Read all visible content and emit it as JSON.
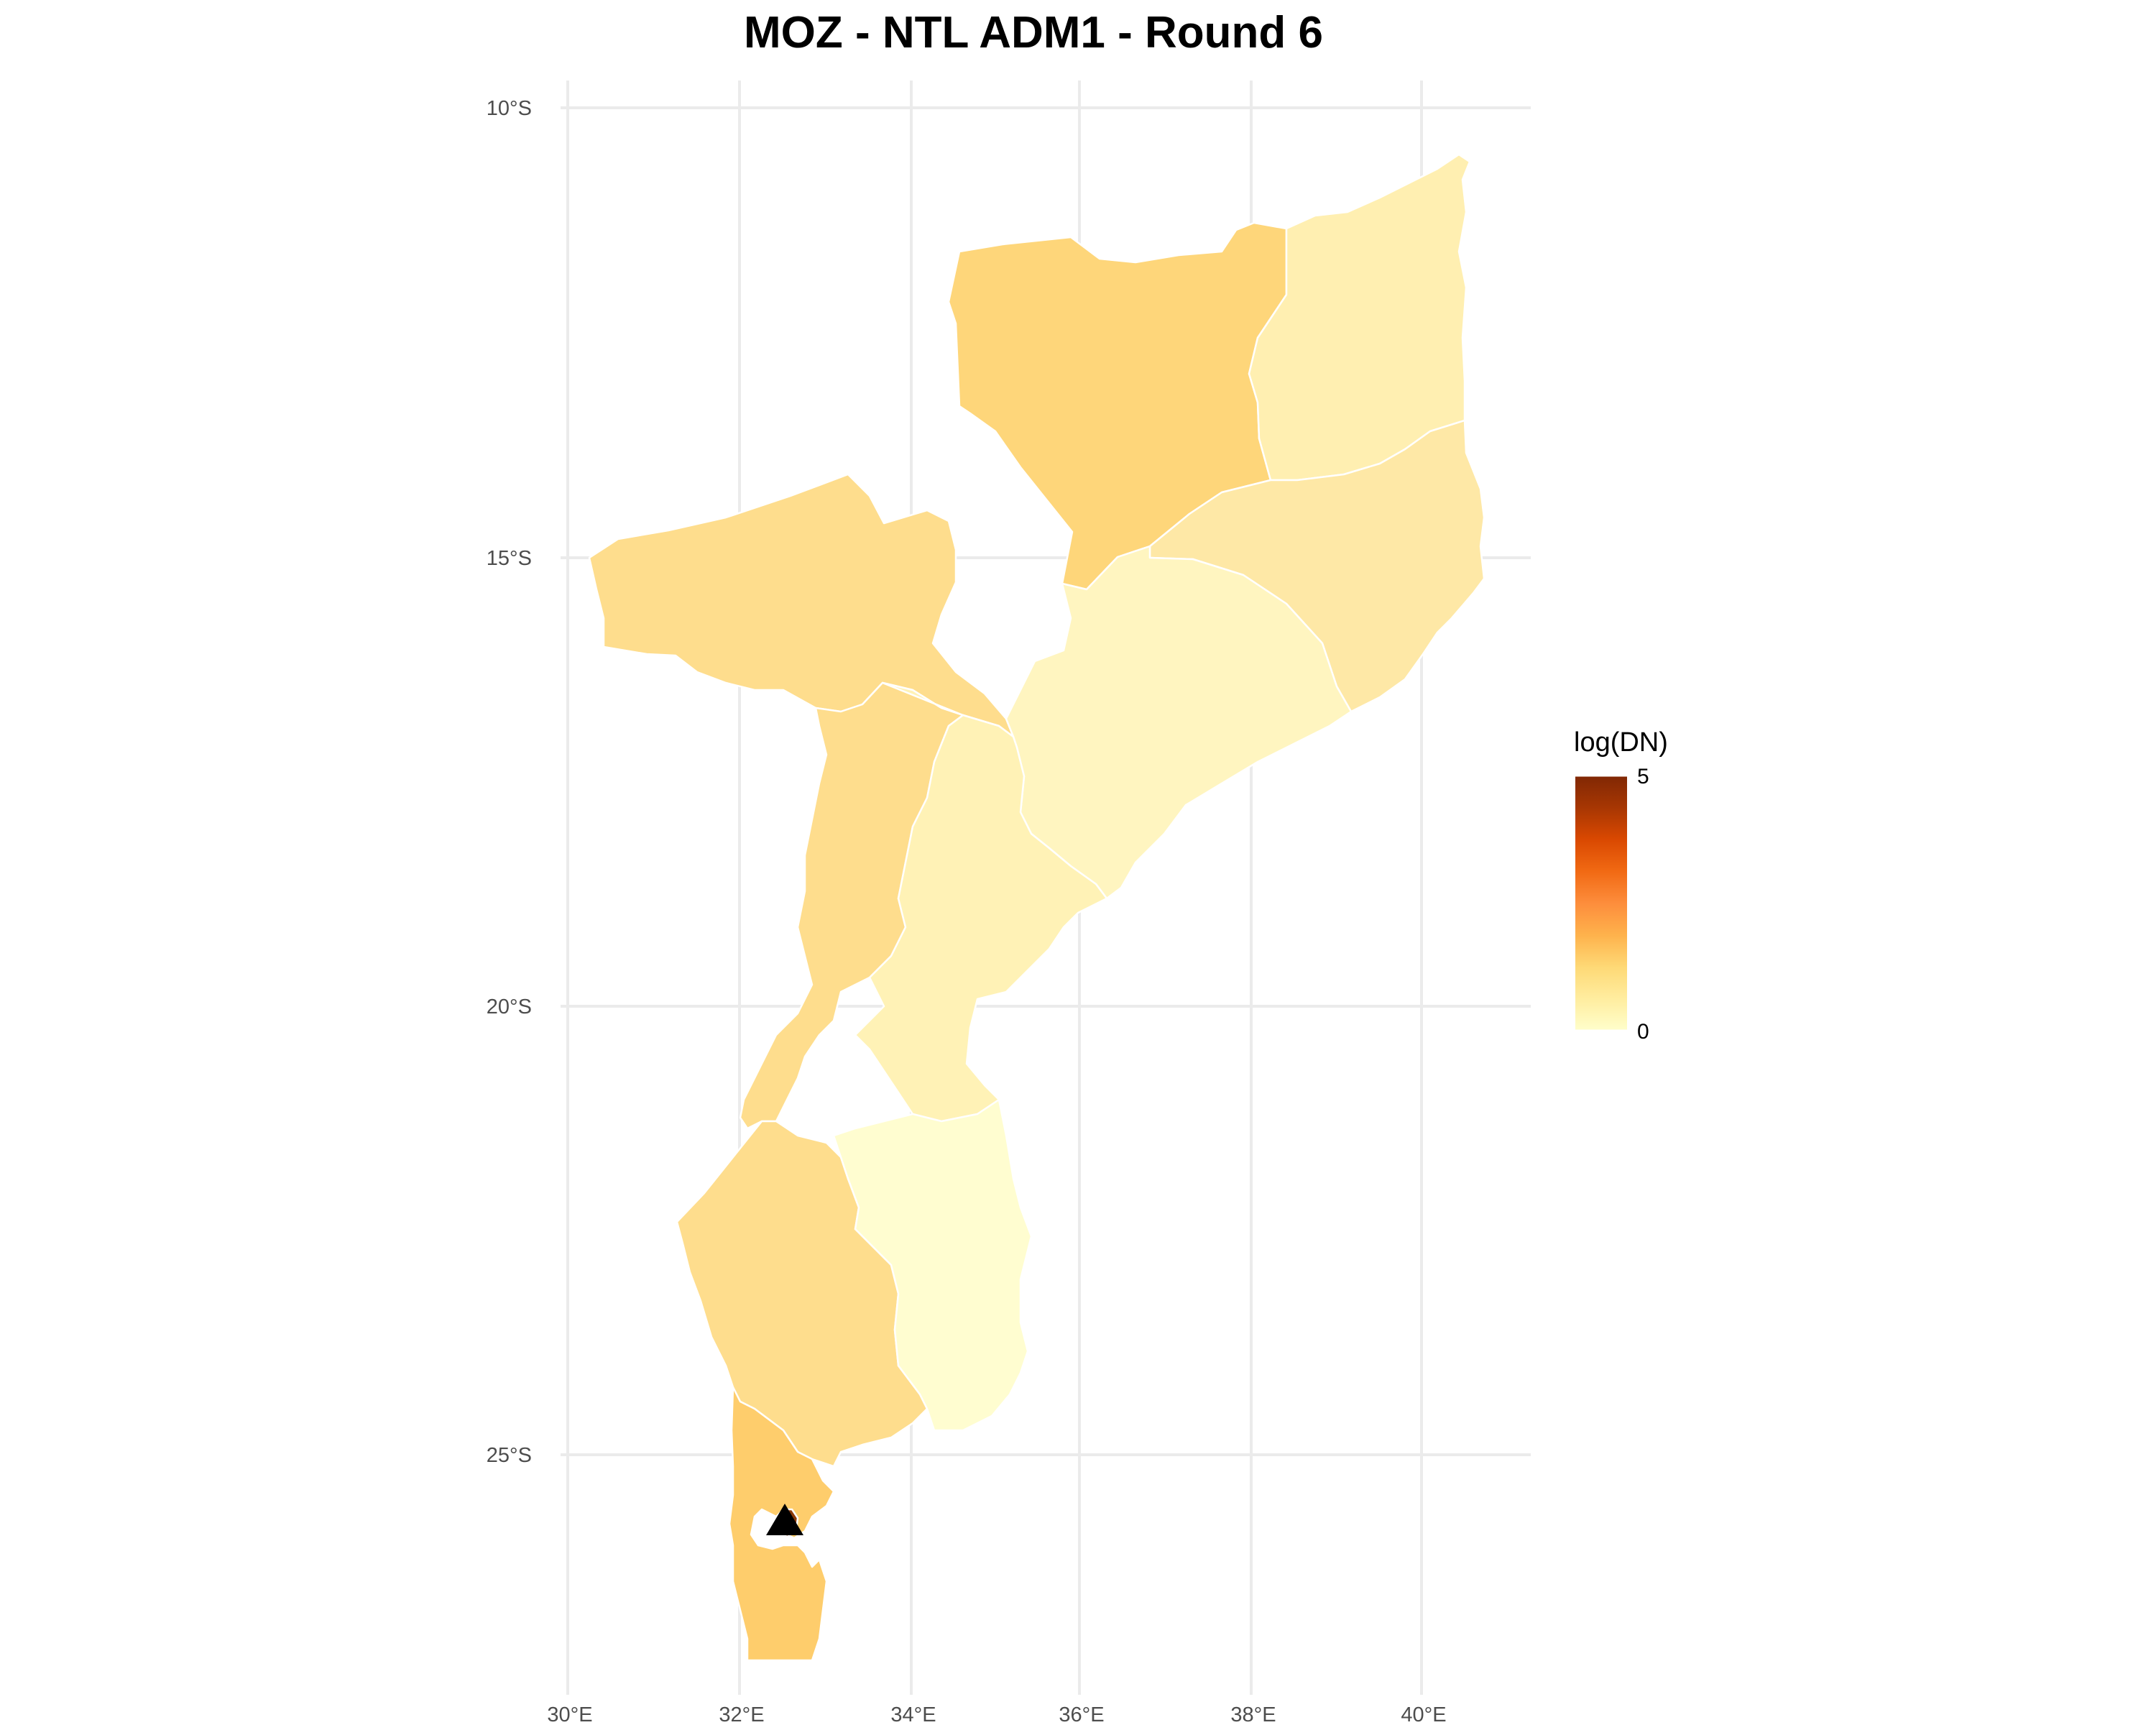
{
  "title": "MOZ - NTL ADM1 - Round 6",
  "axes": {
    "x_ticks": [
      "30°E",
      "32°E",
      "34°E",
      "36°E",
      "38°E",
      "40°E"
    ],
    "y_ticks": [
      "10°S",
      "15°S",
      "20°S",
      "25°S"
    ]
  },
  "legend": {
    "title": "log(DN)",
    "max_label": "5",
    "min_label": "0",
    "gradient_colors": [
      "#ffffcc",
      "#ffeda0",
      "#fed976",
      "#feb24c",
      "#fd8d3c",
      "#f16913",
      "#d94801",
      "#a63603",
      "#7f2704"
    ]
  },
  "chart_data": {
    "type": "choropleth",
    "title": "MOZ - NTL ADM1 - Round 6",
    "x_range_degE": [
      29.6,
      41.6
    ],
    "y_range_degS": [
      9.5,
      27.5
    ],
    "color_scale_range": [
      0,
      5
    ],
    "regions": [
      {
        "color": "#fed67a"
      },
      {
        "color": "#ffefb1"
      },
      {
        "color": "#fee8a6"
      },
      {
        "color": "#fedd8d"
      },
      {
        "color": "#fff5c0"
      },
      {
        "color": "#fedd8d"
      },
      {
        "color": "#fff2b6"
      },
      {
        "color": "#fedd8d"
      },
      {
        "color": "#fffdd0"
      },
      {
        "color": "#fedd8d"
      },
      {
        "color": "#fecd6c"
      },
      {
        "color": "#8c3a08"
      }
    ],
    "marker": {
      "shape": "triangle",
      "lon": 32.58,
      "lat": -25.97,
      "color": "#000000"
    }
  }
}
